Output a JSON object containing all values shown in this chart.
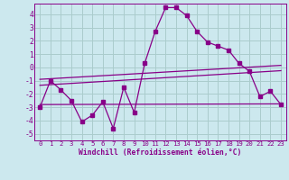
{
  "xlabel": "Windchill (Refroidissement éolien,°C)",
  "background_color": "#cce8ee",
  "line_color": "#880088",
  "grid_color": "#aacccc",
  "xlim": [
    -0.5,
    23.5
  ],
  "ylim": [
    -5.5,
    4.8
  ],
  "yticks": [
    -5,
    -4,
    -3,
    -2,
    -1,
    0,
    1,
    2,
    3,
    4
  ],
  "xticks": [
    0,
    1,
    2,
    3,
    4,
    5,
    6,
    7,
    8,
    9,
    10,
    11,
    12,
    13,
    14,
    15,
    16,
    17,
    18,
    19,
    20,
    21,
    22,
    23
  ],
  "main_x": [
    0,
    1,
    2,
    3,
    4,
    5,
    6,
    7,
    8,
    9,
    10,
    11,
    12,
    13,
    14,
    15,
    16,
    17,
    18,
    19,
    20,
    21,
    22,
    23
  ],
  "main_y": [
    -3.0,
    -1.0,
    -1.7,
    -2.5,
    -4.1,
    -3.6,
    -2.6,
    -4.6,
    -1.5,
    -3.4,
    0.3,
    2.7,
    4.5,
    4.5,
    3.9,
    2.7,
    1.9,
    1.6,
    1.3,
    0.3,
    -0.3,
    -2.2,
    -1.8,
    -2.8
  ],
  "line1_x": [
    0,
    23
  ],
  "line1_y": [
    -0.9,
    0.15
  ],
  "line2_x": [
    0,
    23
  ],
  "line2_y": [
    -1.35,
    -0.25
  ],
  "line3_x": [
    0,
    23
  ],
  "line3_y": [
    -2.8,
    -2.75
  ]
}
